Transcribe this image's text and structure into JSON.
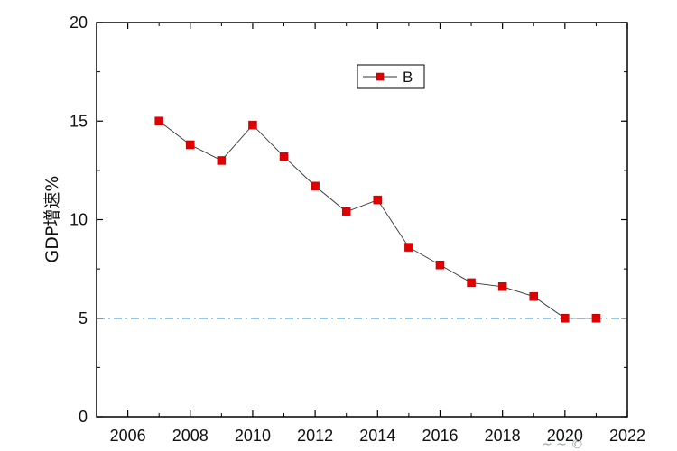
{
  "chart_data": {
    "type": "line",
    "xlabel": "",
    "ylabel": "GDP增速%",
    "xlim": [
      2005,
      2022
    ],
    "ylim": [
      0,
      20
    ],
    "x_ticks": [
      2006,
      2008,
      2010,
      2012,
      2014,
      2016,
      2018,
      2020,
      2022
    ],
    "y_ticks": [
      0,
      5,
      10,
      15,
      20
    ],
    "grid": false,
    "legend_position": "top-center",
    "series": [
      {
        "name": "B",
        "color": "#e00000",
        "line_color": "#333333",
        "marker": "square",
        "x": [
          2007,
          2008,
          2009,
          2010,
          2011,
          2012,
          2013,
          2014,
          2015,
          2016,
          2017,
          2018,
          2019,
          2020,
          2021
        ],
        "values": [
          15.0,
          13.8,
          13.0,
          14.8,
          13.2,
          11.7,
          10.4,
          11.0,
          8.6,
          7.7,
          6.8,
          6.6,
          6.1,
          5.0,
          5.0
        ]
      }
    ],
    "reference_lines": [
      {
        "y": 5,
        "orientation": "horizontal",
        "style": "dash-dot",
        "color": "#4a86b8"
      }
    ]
  }
}
